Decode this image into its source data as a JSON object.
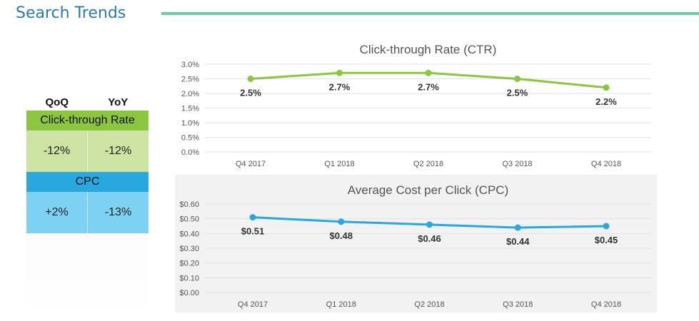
{
  "header": {
    "title": "Search Trends"
  },
  "table": {
    "headers": [
      "QoQ",
      "YoY"
    ],
    "sections": [
      {
        "label": "Click-through Rate",
        "label_color": "#8cc63f",
        "cell_color": "#cde3a3",
        "qoq": "-12%",
        "yoy": "-12%"
      },
      {
        "label": "CPC",
        "label_color": "#29a8e0",
        "cell_color": "#7dd1f3",
        "qoq": "+2%",
        "yoy": "-13%"
      }
    ]
  },
  "chart_data": [
    {
      "type": "line",
      "title": "Click-through Rate (CTR)",
      "categories": [
        "Q4 2017",
        "Q1 2018",
        "Q2 2018",
        "Q3 2018",
        "Q4 2018"
      ],
      "values": [
        2.5,
        2.7,
        2.7,
        2.5,
        2.2
      ],
      "data_labels": [
        "2.5%",
        "2.7%",
        "2.7%",
        "2.5%",
        "2.2%"
      ],
      "ylim": [
        0,
        3.0
      ],
      "yticks": [
        "0.0%",
        "0.5%",
        "1.0%",
        "1.5%",
        "2.0%",
        "2.5%",
        "3.0%"
      ],
      "color": "#8cc63f",
      "grid": true
    },
    {
      "type": "line",
      "title": "Average Cost per Click (CPC)",
      "categories": [
        "Q4 2017",
        "Q1 2018",
        "Q2 2018",
        "Q3 2018",
        "Q4 2018"
      ],
      "values": [
        0.51,
        0.48,
        0.46,
        0.44,
        0.45
      ],
      "data_labels": [
        "$0.51",
        "$0.48",
        "$0.46",
        "$0.44",
        "$0.45"
      ],
      "ylim": [
        0,
        0.6
      ],
      "yticks": [
        "$0.00",
        "$0.10",
        "$0.20",
        "$0.30",
        "$0.40",
        "$0.50",
        "$0.60"
      ],
      "color": "#29a8e0",
      "grid": true
    }
  ]
}
